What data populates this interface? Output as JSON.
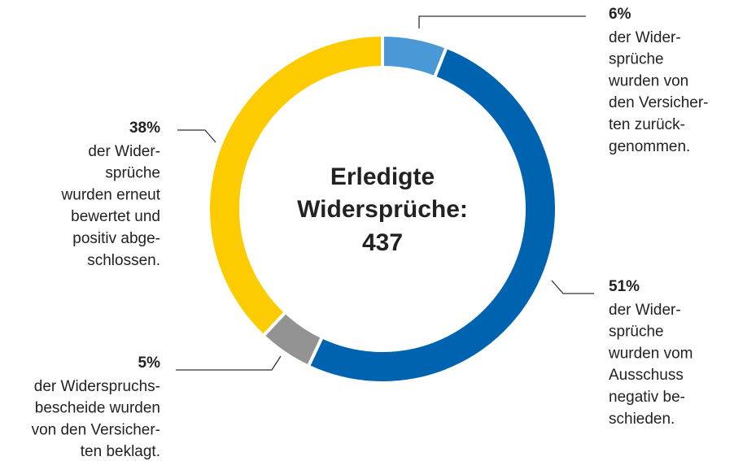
{
  "chart_data": {
    "type": "donut",
    "center_title": [
      "Erledigte",
      "Widersprüche:"
    ],
    "total": 437,
    "categories": [
      null,
      null,
      null,
      null
    ],
    "values": [
      6,
      51,
      5,
      38
    ],
    "value_labels": [
      "6%",
      "51%",
      "5%",
      "38%"
    ],
    "colors": [
      "#4a98d6",
      "#0063b0",
      "#939393",
      "#fccc00"
    ],
    "descriptions": [
      [
        "der Wider-",
        "sprüche",
        "wurden von",
        "den Versicher-",
        "ten zurück-",
        "genommen."
      ],
      [
        "der Wider-",
        "sprüche",
        "wurden vom",
        "Ausschuss",
        "negativ be-",
        "schieden."
      ],
      [
        "der Widerspruchs-",
        "bescheide wurden",
        "von den Versicher-",
        "ten beklagt."
      ],
      [
        "der Wider-",
        "sprüche",
        "wurden erneut",
        "bewertet und",
        "positiv abge-",
        "schlossen."
      ]
    ]
  }
}
